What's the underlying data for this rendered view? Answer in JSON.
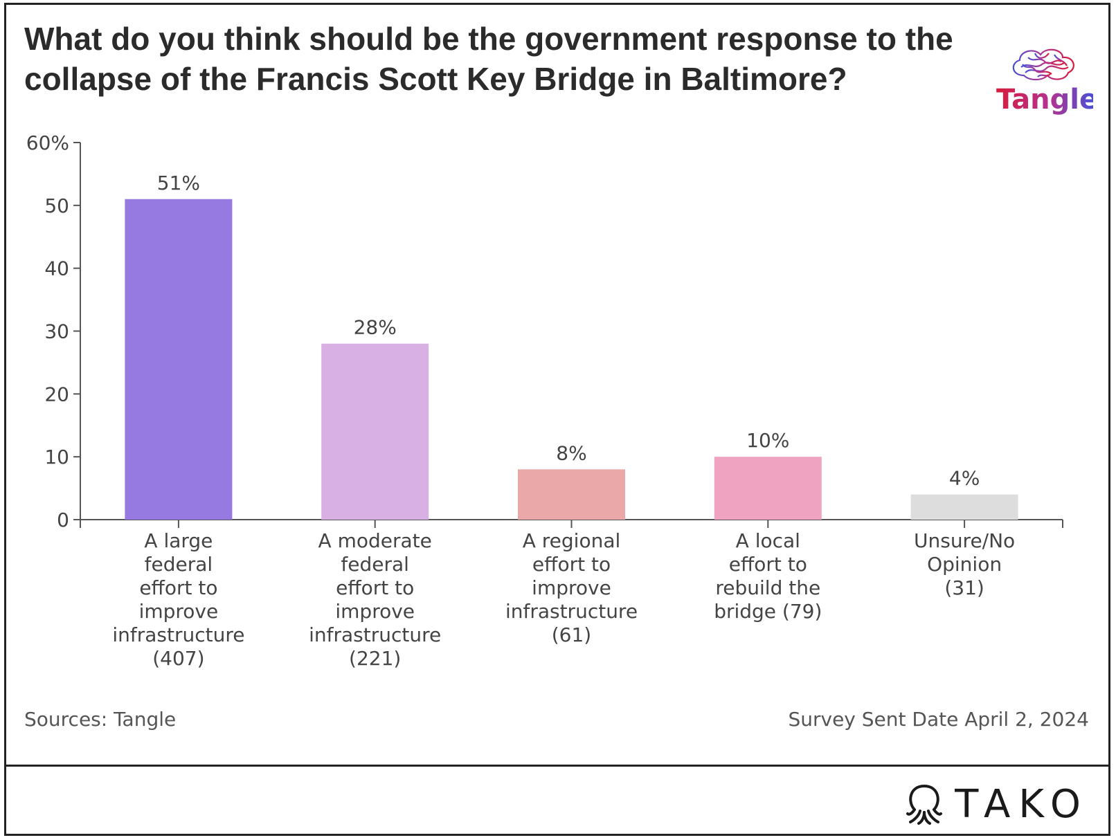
{
  "header": {
    "title": "What do you think should be the government response to the collapse of the Francis Scott Key Bridge in Baltimore?",
    "logo_text": "Tangle"
  },
  "chart_data": {
    "type": "bar",
    "categories": [
      [
        "A large",
        "federal",
        "effort to",
        "improve",
        "infrastructure",
        "(407)"
      ],
      [
        "A moderate",
        "federal",
        "effort to",
        "improve",
        "infrastructure",
        "(221)"
      ],
      [
        "A regional",
        "effort to",
        "improve",
        "infrastructure",
        "(61)"
      ],
      [
        "A local",
        "effort to",
        "rebuild the",
        "bridge (79)"
      ],
      [
        "Unsure/No",
        "Opinion",
        "(31)"
      ]
    ],
    "values": [
      51,
      28,
      8,
      10,
      4
    ],
    "value_labels": [
      "51%",
      "28%",
      "8%",
      "10%",
      "4%"
    ],
    "colors": [
      "#9779e2",
      "#d9b0e4",
      "#eaa8a8",
      "#efa3c1",
      "#dddddd"
    ],
    "ylim": [
      0,
      60
    ],
    "yticks": [
      0,
      10,
      20,
      30,
      40,
      50,
      60
    ],
    "ytick_labels": [
      "0",
      "10",
      "20",
      "30",
      "40",
      "50",
      "60%"
    ],
    "xlabel": "",
    "ylabel": ""
  },
  "footer": {
    "sources": "Sources: Tangle",
    "survey_date": "Survey Sent Date April 2, 2024",
    "brand": "TAKO"
  }
}
